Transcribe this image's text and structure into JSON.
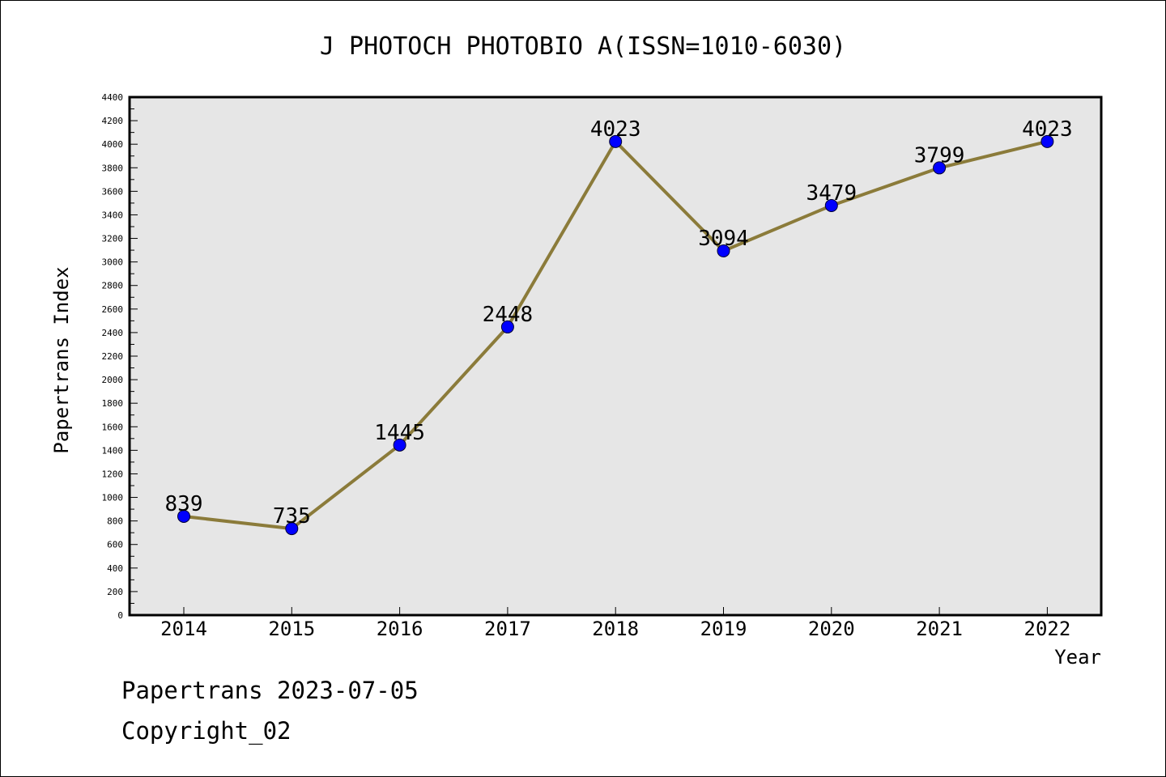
{
  "chart_data": {
    "type": "line",
    "title": "J PHOTOCH PHOTOBIO A(ISSN=1010-6030)",
    "xlabel": "Year",
    "ylabel": "Papertrans Index",
    "x": [
      "2014",
      "2015",
      "2016",
      "2017",
      "2018",
      "2019",
      "2020",
      "2021",
      "2022"
    ],
    "series": [
      {
        "values": [
          839,
          735,
          1445,
          2448,
          4023,
          3094,
          3479,
          3799,
          4023
        ]
      }
    ],
    "data_labels": [
      "839",
      "735",
      "1445",
      "2448",
      "4023",
      "3094",
      "3479",
      "3799",
      "4023"
    ],
    "ylim": [
      0,
      4400
    ],
    "ytick_step": 200,
    "grid": false,
    "plot_background": "#e6e6e6",
    "line_color": "#8b7b3a",
    "marker_color": "#0000ff"
  },
  "footer": {
    "line1": "Papertrans 2023-07-05",
    "line2": "Copyright_02"
  }
}
